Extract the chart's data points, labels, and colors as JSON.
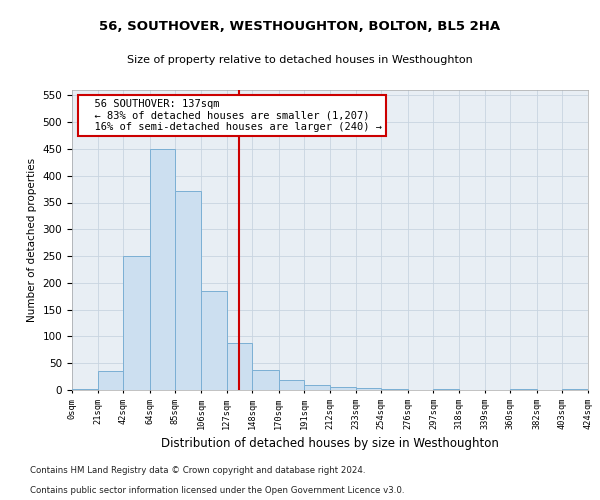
{
  "title": "56, SOUTHOVER, WESTHOUGHTON, BOLTON, BL5 2HA",
  "subtitle": "Size of property relative to detached houses in Westhoughton",
  "xlabel": "Distribution of detached houses by size in Westhoughton",
  "ylabel": "Number of detached properties",
  "footnote1": "Contains HM Land Registry data © Crown copyright and database right 2024.",
  "footnote2": "Contains public sector information licensed under the Open Government Licence v3.0.",
  "annotation_line1": "56 SOUTHOVER: 137sqm",
  "annotation_line2": "← 83% of detached houses are smaller (1,207)",
  "annotation_line3": "16% of semi-detached houses are larger (240) →",
  "bin_edges": [
    0,
    21,
    42,
    64,
    85,
    106,
    127,
    148,
    170,
    191,
    212,
    233,
    254,
    276,
    297,
    318,
    339,
    360,
    382,
    403,
    424
  ],
  "bin_counts": [
    2,
    35,
    250,
    450,
    372,
    185,
    88,
    38,
    18,
    10,
    5,
    3,
    1,
    0,
    2,
    0,
    0,
    1,
    0,
    1
  ],
  "property_size": 137,
  "bar_color": "#ccdff0",
  "bar_edge_color": "#7bafd4",
  "vline_color": "#cc0000",
  "grid_color": "#c8d4e0",
  "annotation_box_color": "#cc0000",
  "ylim": [
    0,
    560
  ],
  "yticks": [
    0,
    50,
    100,
    150,
    200,
    250,
    300,
    350,
    400,
    450,
    500,
    550
  ],
  "background_color": "#e8eef4"
}
